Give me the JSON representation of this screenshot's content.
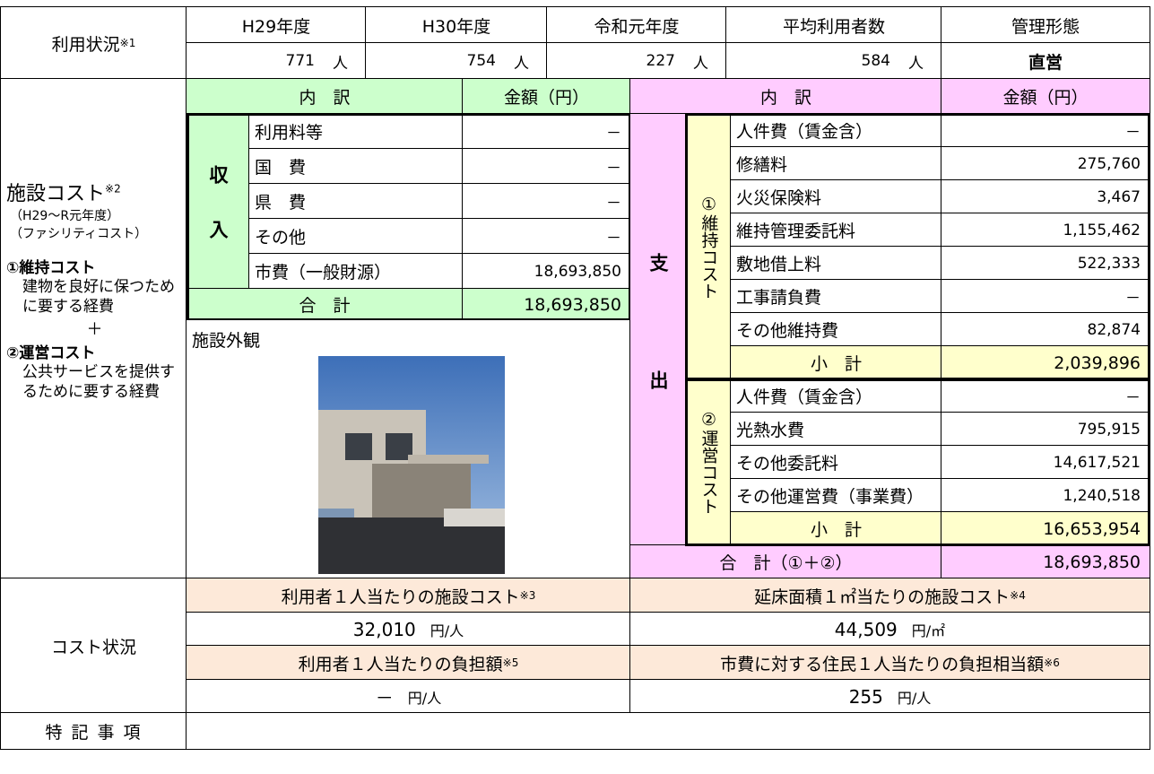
{
  "usage": {
    "label": "利用状況",
    "note": "※1",
    "headers": [
      "H29年度",
      "H30年度",
      "令和元年度",
      "平均利用者数",
      "管理形態"
    ],
    "values": [
      "771",
      "754",
      "227",
      "584",
      "直営"
    ],
    "unit": "人"
  },
  "cost": {
    "label": "施設コスト",
    "note": "※2",
    "sub1": "（H29～R元年度）",
    "sub2": "（ファシリティコスト）",
    "maint_title": "①維持コスト",
    "maint_desc": "建物を良好に保つために要する経費",
    "plus": "＋",
    "op_title": "②運営コスト",
    "op_desc": "公共サービスを提供するために要する経費"
  },
  "income": {
    "header_item": "内　訳",
    "header_amount": "金額（円）",
    "label": "収入",
    "items": [
      {
        "name": "利用料等",
        "amount": "－"
      },
      {
        "name": "国　費",
        "amount": "－"
      },
      {
        "name": "県　費",
        "amount": "－"
      },
      {
        "name": "その他",
        "amount": "－"
      },
      {
        "name": "市費（一般財源）",
        "amount": "18,693,850"
      }
    ],
    "total_label": "合　計",
    "total": "18,693,850"
  },
  "photo_label": "施設外観",
  "expense": {
    "header_item": "内　訳",
    "header_amount": "金額（円）",
    "label": "支出",
    "maint": {
      "label": "①維持コスト",
      "items": [
        {
          "name": "人件費（賃金含）",
          "amount": "－"
        },
        {
          "name": "修繕料",
          "amount": "275,760"
        },
        {
          "name": "火災保険料",
          "amount": "3,467"
        },
        {
          "name": "維持管理委託料",
          "amount": "1,155,462"
        },
        {
          "name": "敷地借上料",
          "amount": "522,333"
        },
        {
          "name": "工事請負費",
          "amount": "－"
        },
        {
          "name": "その他維持費",
          "amount": "82,874"
        }
      ],
      "subtotal_label": "小　計",
      "subtotal": "2,039,896"
    },
    "op": {
      "label": "②運営コスト",
      "items": [
        {
          "name": "人件費（賃金含）",
          "amount": "－"
        },
        {
          "name": "光熱水費",
          "amount": "795,915"
        },
        {
          "name": "その他委託料",
          "amount": "14,617,521"
        },
        {
          "name": "その他運営費（事業費）",
          "amount": "1,240,518"
        }
      ],
      "subtotal_label": "小　計",
      "subtotal": "16,653,954"
    },
    "total_label": "合　計（①＋②）",
    "total": "18,693,850"
  },
  "status": {
    "label": "コスト状況",
    "items": [
      {
        "title": "利用者１人当たりの施設コスト",
        "note": "※3",
        "value": "32,010",
        "unit": "円/人"
      },
      {
        "title": "延床面積１㎡当たりの施設コスト",
        "note": "※4",
        "value": "44,509",
        "unit": "円/㎡"
      },
      {
        "title": "利用者１人当たりの負担額",
        "note": "※5",
        "value": "－",
        "unit": "円/人"
      },
      {
        "title": "市費に対する住民１人当たりの負担相当額",
        "note": "※6",
        "value": "255",
        "unit": "円/人"
      }
    ]
  },
  "remarks": {
    "label": "特 記 事 項"
  }
}
